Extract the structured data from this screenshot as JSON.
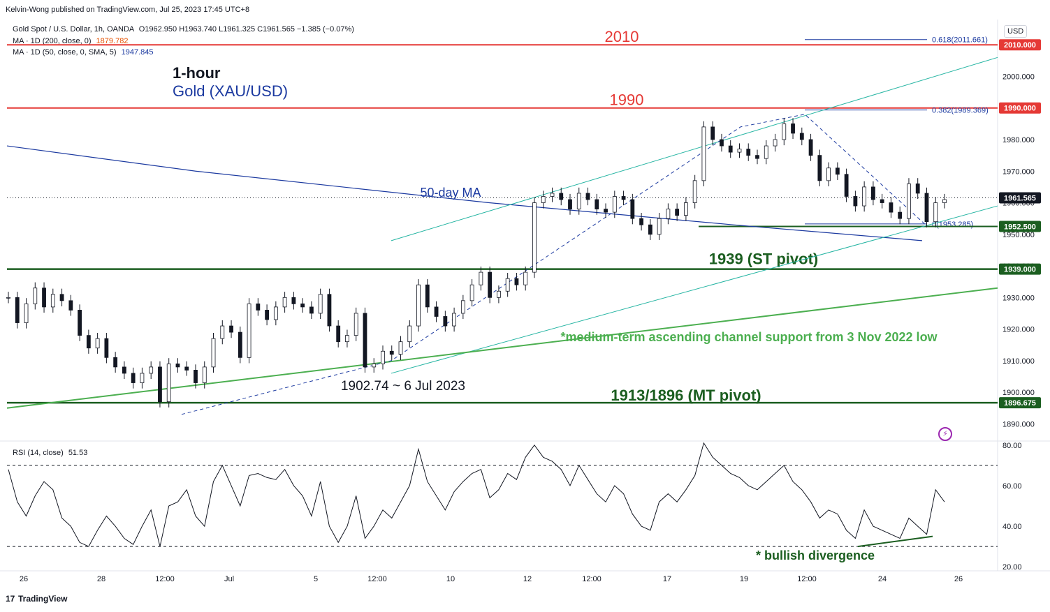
{
  "publisher": "Kelvin-Wong published on TradingView.com, Jul 25, 2023 17:45 UTC+8",
  "legend": {
    "symbol": "Gold Spot / U.S. Dollar, 1h, OANDA",
    "ohlc": "O1962.950 H1963.740 L1961.325 C1961.565 −1.385 (−0.07%)",
    "ma200_label": "MA · 1D (200, close, 0)",
    "ma200_value": "1879.782",
    "ma50_label": "MA · 1D (50, close, 0, SMA, 5)",
    "ma50_value": "1947.845"
  },
  "heading": {
    "timeframe": "1-hour",
    "instrument": "Gold (XAU/USD)"
  },
  "currency_button": "USD",
  "rsi_legend": {
    "label": "RSI (14, close)",
    "value": "51.53"
  },
  "branding": "TradingView",
  "colors": {
    "resistance": "#e53935",
    "support": "#1b5e20",
    "channel": "#26b5a3",
    "ma50": "#1c3aa0",
    "green_annotation": "#4caf50",
    "candle": "#131722"
  },
  "chart_data": [
    {
      "type": "candlestick",
      "title": "Gold Spot / U.S. Dollar, 1h",
      "x_tick_labels": [
        "26",
        "28",
        "12:00",
        "Jul",
        "5",
        "12:00",
        "10",
        "12",
        "12:00",
        "17",
        "19",
        "12:00",
        "24",
        "26"
      ],
      "y_tick_labels": [
        "1890.000",
        "1900.000",
        "1910.000",
        "1920.000",
        "1930.000",
        "1940.000",
        "1950.000",
        "1960.000",
        "1970.000",
        "1980.000",
        "2000.000"
      ],
      "ylim": [
        1885,
        2018
      ],
      "price_labels": [
        {
          "label": "2010.000",
          "value": 2010,
          "color": "#e53935"
        },
        {
          "label": "1990.000",
          "value": 1990,
          "color": "#e53935"
        },
        {
          "label": "1961.565",
          "value": 1961.565,
          "color": "#131722"
        },
        {
          "label": "1952.500",
          "value": 1952.5,
          "color": "#1b5e20"
        },
        {
          "label": "1939.000",
          "value": 1939,
          "color": "#1b5e20"
        },
        {
          "label": "1896.675",
          "value": 1896.675,
          "color": "#1b5e20"
        }
      ],
      "horizontal_levels": [
        {
          "name": "2010",
          "value": 2010,
          "label": "2010"
        },
        {
          "name": "1990",
          "value": 1990,
          "label": "1990"
        },
        {
          "name": "1939 (ST pivot)",
          "value": 1939,
          "label": "1939 (ST pivot)"
        },
        {
          "name": "1913/1896 (MT pivot)",
          "value": 1896.675,
          "label": "1913/1896 (MT pivot)"
        }
      ],
      "fib_labels": [
        {
          "label": "0.618(2011.661)",
          "value": 2011.661
        },
        {
          "label": "0.382(1989.369)",
          "value": 1989.369
        },
        {
          "label": "0(1953.285)",
          "value": 1953.285
        }
      ],
      "annotations": [
        "50-day MA",
        "1902.74 ~ 6 Jul 2023",
        "*medium-term ascending channel support from 3 Nov 2022 low"
      ],
      "price_path": [
        1930,
        1922,
        1928,
        1933,
        1927,
        1931,
        1929,
        1926,
        1918,
        1914,
        1917,
        1911,
        1908,
        1906,
        1903,
        1906,
        1908,
        1897,
        1909,
        1908,
        1907,
        1903,
        1908,
        1917,
        1921,
        1919,
        1911,
        1928,
        1926,
        1923,
        1927,
        1930,
        1928,
        1927,
        1925,
        1931,
        1921,
        1916,
        1918,
        1925,
        1908,
        1909,
        1913,
        1912,
        1916,
        1921,
        1934,
        1927,
        1924,
        1921,
        1925,
        1929,
        1934,
        1938,
        1930,
        1932,
        1936,
        1934,
        1938,
        1960,
        1962,
        1963,
        1961,
        1958,
        1963,
        1961,
        1958,
        1957,
        1962,
        1961,
        1955,
        1953,
        1950,
        1955,
        1958,
        1956,
        1960,
        1967,
        1984,
        1980,
        1978,
        1976,
        1977,
        1975,
        1974,
        1978,
        1980,
        1985,
        1982,
        1980,
        1975,
        1967,
        1971,
        1969,
        1962,
        1959,
        1965,
        1961,
        1960,
        1957,
        1955,
        1966,
        1963,
        1954,
        1960,
        1961
      ]
    },
    {
      "type": "line",
      "title": "RSI (14, close)",
      "y_tick_labels": [
        "20.00",
        "40.00",
        "60.00",
        "80.00"
      ],
      "ylim": [
        18,
        82
      ],
      "reference_levels": [
        70,
        30
      ],
      "annotations": [
        "* bullish divergence"
      ],
      "series": [
        {
          "values": [
            68,
            52,
            45,
            55,
            62,
            58,
            44,
            40,
            32,
            30,
            38,
            45,
            40,
            34,
            31,
            40,
            48,
            30,
            50,
            52,
            58,
            45,
            40,
            62,
            70,
            60,
            50,
            65,
            66,
            64,
            63,
            68,
            60,
            55,
            45,
            62,
            40,
            32,
            40,
            55,
            34,
            40,
            48,
            44,
            52,
            60,
            78,
            62,
            55,
            48,
            57,
            62,
            66,
            68,
            54,
            58,
            66,
            63,
            74,
            80,
            74,
            72,
            68,
            60,
            70,
            63,
            56,
            52,
            60,
            56,
            46,
            40,
            38,
            52,
            56,
            52,
            58,
            65,
            81,
            74,
            70,
            66,
            64,
            60,
            58,
            62,
            66,
            70,
            62,
            58,
            52,
            44,
            48,
            46,
            38,
            34,
            48,
            40,
            38,
            36,
            34,
            44,
            40,
            36,
            58,
            52
          ]
        }
      ]
    }
  ]
}
